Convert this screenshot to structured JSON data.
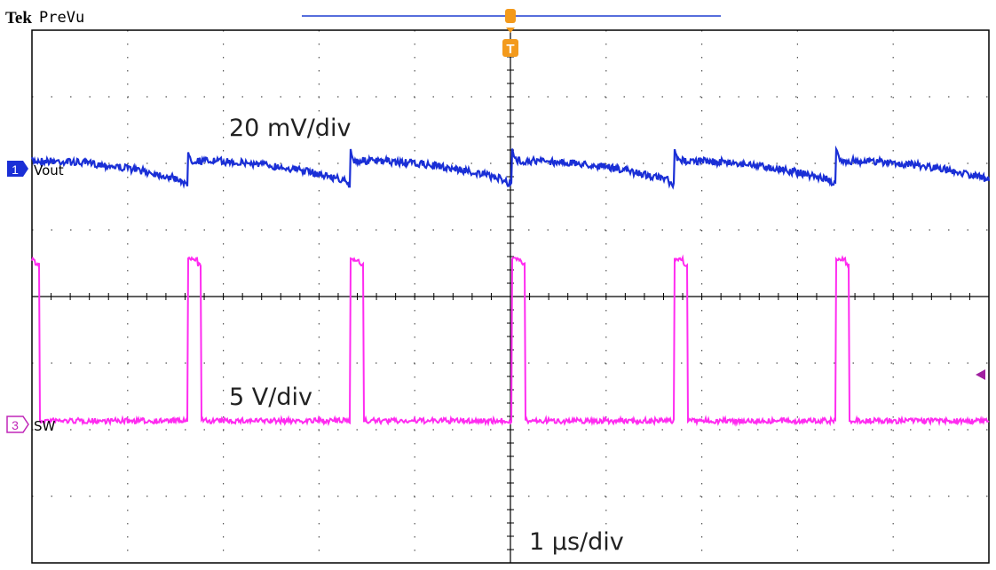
{
  "header": {
    "brand": "Tek",
    "status": "PreVu"
  },
  "trigger": "T",
  "channels": [
    {
      "number": "1",
      "label": "Vout",
      "scale": "20 mV/div"
    },
    {
      "number": "3",
      "label": "SW",
      "scale": "5 V/div"
    }
  ],
  "timebase": "1 µs/div"
}
